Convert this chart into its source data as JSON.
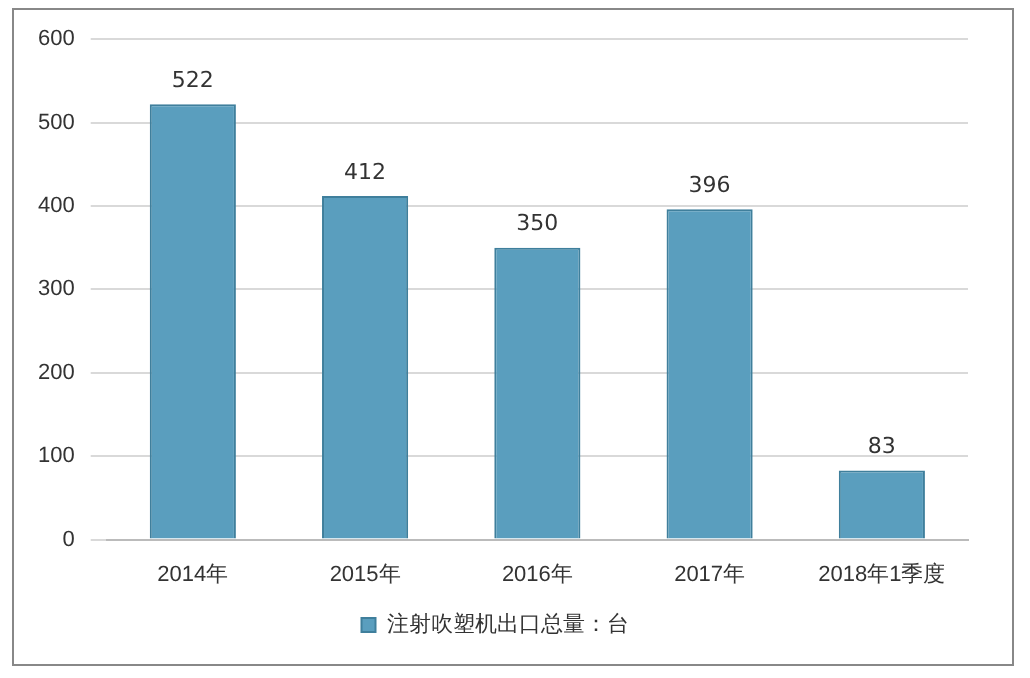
{
  "chart_data": {
    "type": "bar",
    "categories": [
      "2014年",
      "2015年",
      "2016年",
      "2017年",
      "2018年1季度"
    ],
    "series": [
      {
        "name": "注射吹塑机出口总量：台",
        "color": "#5a9ebe",
        "values": [
          522,
          412,
          350,
          396,
          83
        ]
      }
    ],
    "ylim": [
      0,
      600
    ],
    "yticks": [
      0,
      100,
      200,
      300,
      400,
      500,
      600
    ],
    "grid": "y",
    "legend": "bottom",
    "data_labels": true
  }
}
